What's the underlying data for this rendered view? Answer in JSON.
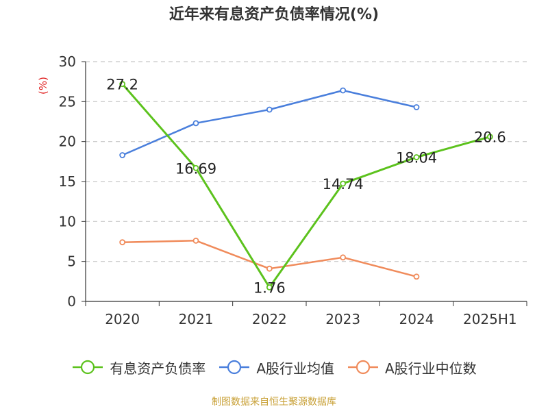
{
  "source_note": "制图数据来自恒生聚源数据库",
  "chart_data": {
    "type": "line",
    "title": "近年来有息资产负债率情况(%)",
    "ylabel": "(%)",
    "xlabel": "",
    "categories": [
      "2020",
      "2021",
      "2022",
      "2023",
      "2024",
      "2025H1"
    ],
    "ylim": [
      0,
      30
    ],
    "yticks": [
      0,
      5,
      10,
      15,
      20,
      25,
      30
    ],
    "grid": true,
    "legend_position": "bottom",
    "series": [
      {
        "name": "有息资产负债率",
        "color": "#5cc21d",
        "values": [
          27.2,
          16.69,
          1.76,
          14.74,
          18.04,
          20.6
        ],
        "labels": [
          "27.2",
          "16.69",
          "1.76",
          "14.74",
          "18.04",
          "20.6"
        ]
      },
      {
        "name": "A股行业均值",
        "color": "#4a7fdc",
        "values": [
          18.3,
          22.3,
          24.0,
          26.4,
          24.3,
          null
        ]
      },
      {
        "name": "A股行业中位数",
        "color": "#f08b5b",
        "values": [
          7.4,
          7.6,
          4.1,
          5.5,
          3.1,
          null
        ]
      }
    ]
  }
}
